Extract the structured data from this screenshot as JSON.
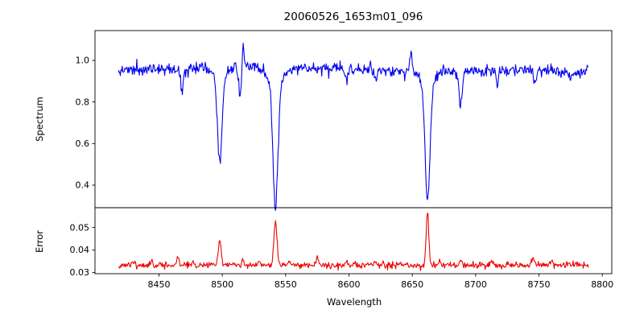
{
  "chart_data": {
    "type": "line",
    "title": "20060526_1653m01_096",
    "xlabel": "Wavelength",
    "xlim": [
      8399.5,
      8807.5
    ],
    "xticks": [
      8450,
      8500,
      8550,
      8600,
      8650,
      8700,
      8750,
      8800
    ],
    "xtick_labels": [
      "8450",
      "8500",
      "8550",
      "8600",
      "8650",
      "8700",
      "8750",
      "8800"
    ],
    "data_wavelength_start": 8418,
    "data_wavelength_end": 8789,
    "sample_step": 0.5,
    "grid": false,
    "legend": false,
    "background_color": "#ffffff",
    "axis_color": "#000000",
    "key_features": {
      "ca_ii_triplet_wavelengths": [
        8498,
        8542,
        8662
      ],
      "spectrum_minima": [
        0.54,
        0.33,
        0.38
      ],
      "error_peak_values": [
        0.045,
        0.054,
        0.0575
      ]
    },
    "panels": [
      {
        "name": "spectrum",
        "ylabel": "Spectrum",
        "ylim": [
          0.2915,
          1.1435
        ],
        "yticks": [
          0.4,
          0.6,
          0.8,
          1.0
        ],
        "ytick_labels": [
          "0.4",
          "0.6",
          "0.8",
          "1.0"
        ],
        "line_color": "#0000ee",
        "seed": 5,
        "continuum_base": 0.957,
        "continuum_wave_amplitude": 0.011,
        "continuum_wave_center": 8452,
        "continuum_wave_period": 48,
        "right_edge_droop": [
          8777,
          0.028,
          9
        ],
        "right_edge_spike": [
          8789,
          0.03,
          1.2
        ],
        "noise_sigma": 0.015,
        "absorption_features": [
          [
            8468,
            0.1,
            1.2
          ],
          [
            8498,
            0.4,
            1.7
          ],
          [
            8498,
            0.06,
            4.5
          ],
          [
            8514,
            0.15,
            1.0
          ],
          [
            8542,
            0.6,
            2.0
          ],
          [
            8542,
            0.07,
            5.5
          ],
          [
            8598,
            0.05,
            1.0
          ],
          [
            8621,
            0.05,
            1.0
          ],
          [
            8662,
            0.57,
            1.9
          ],
          [
            8662,
            0.06,
            5.0
          ],
          [
            8688,
            0.16,
            1.2
          ],
          [
            8717,
            0.07,
            1.0
          ],
          [
            8747,
            0.05,
            0.9
          ]
        ],
        "emission_spikes": [
          [
            8516.5,
            0.13,
            0.6
          ],
          [
            8649,
            0.1,
            0.6
          ]
        ]
      },
      {
        "name": "error",
        "ylabel": "Error",
        "ylim": [
          0.0295,
          0.0588
        ],
        "yticks": [
          0.03,
          0.04,
          0.05
        ],
        "ytick_labels": [
          "0.03",
          "0.04",
          "0.05"
        ],
        "line_color": "#ee0000",
        "seed": 11,
        "baseline": 0.0333,
        "noise_sigma": 0.0007,
        "peaks": [
          [
            8430,
            0.0015,
            0.9
          ],
          [
            8444,
            0.002,
            0.8
          ],
          [
            8465,
            0.0032,
            1.0
          ],
          [
            8477,
            0.0015,
            0.8
          ],
          [
            8498,
            0.0112,
            1.1
          ],
          [
            8516,
            0.0032,
            0.7
          ],
          [
            8529,
            0.002,
            0.7
          ],
          [
            8542,
            0.02,
            1.2
          ],
          [
            8553,
            0.002,
            0.8
          ],
          [
            8575,
            0.0038,
            0.8
          ],
          [
            8598,
            0.0015,
            0.7
          ],
          [
            8621,
            0.0015,
            0.7
          ],
          [
            8662,
            0.024,
            1.0
          ],
          [
            8672,
            0.0015,
            0.8
          ],
          [
            8688,
            0.002,
            0.8
          ],
          [
            8713,
            0.0018,
            0.8
          ],
          [
            8745,
            0.0028,
            1.0
          ],
          [
            8760,
            0.0018,
            0.8
          ]
        ]
      }
    ]
  }
}
